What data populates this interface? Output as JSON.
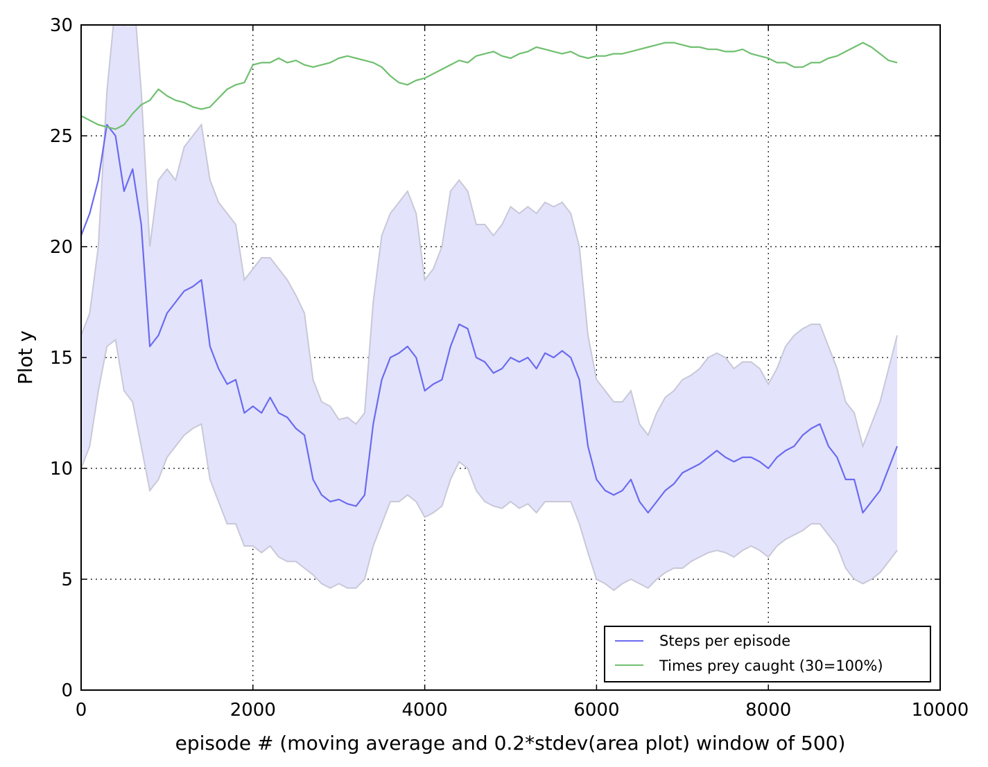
{
  "chart_data": {
    "type": "line",
    "title": "",
    "xlabel": "episode # (moving average and 0.2*stdev(area plot) window of 500)",
    "ylabel": "Plot y",
    "xlim": [
      0,
      10000
    ],
    "ylim": [
      0,
      30
    ],
    "x_ticks": [
      "0",
      "2000",
      "4000",
      "6000",
      "8000",
      "10000"
    ],
    "y_ticks": [
      "0",
      "5",
      "10",
      "15",
      "20",
      "25",
      "30"
    ],
    "grid": true,
    "legend_position": "lower-right",
    "colors": {
      "steps": "#6a6af0",
      "steps_band": "#e3e3fc",
      "band_edge": "#c8c8d8",
      "prey": "#6fbf6f"
    },
    "series": [
      {
        "name": "Steps per episode",
        "x": [
          0,
          100,
          200,
          300,
          400,
          500,
          600,
          700,
          800,
          900,
          1000,
          1100,
          1200,
          1300,
          1400,
          1500,
          1600,
          1700,
          1800,
          1900,
          2000,
          2100,
          2200,
          2300,
          2400,
          2500,
          2600,
          2700,
          2800,
          2900,
          3000,
          3100,
          3200,
          3300,
          3400,
          3500,
          3600,
          3700,
          3800,
          3900,
          4000,
          4100,
          4200,
          4300,
          4400,
          4500,
          4600,
          4700,
          4800,
          4900,
          5000,
          5100,
          5200,
          5300,
          5400,
          5500,
          5600,
          5700,
          5800,
          5900,
          6000,
          6100,
          6200,
          6300,
          6400,
          6500,
          6600,
          6700,
          6800,
          6900,
          7000,
          7100,
          7200,
          7300,
          7400,
          7500,
          7600,
          7700,
          7800,
          7900,
          8000,
          8100,
          8200,
          8300,
          8400,
          8500,
          8600,
          8700,
          8800,
          8900,
          9000,
          9100,
          9200,
          9300,
          9400,
          9500
        ],
        "y": [
          20.5,
          21.5,
          23,
          25.5,
          25,
          22.5,
          23.5,
          21,
          15.5,
          16,
          17,
          17.5,
          18,
          18.2,
          18.5,
          15.5,
          14.5,
          13.8,
          14,
          12.5,
          12.8,
          12.5,
          13.2,
          12.5,
          12.3,
          11.8,
          11.5,
          9.5,
          8.8,
          8.5,
          8.6,
          8.4,
          8.3,
          8.8,
          12.0,
          14.0,
          15.0,
          15.2,
          15.5,
          15.0,
          13.5,
          13.8,
          14.0,
          15.5,
          16.5,
          16.3,
          15.0,
          14.8,
          14.3,
          14.5,
          15.0,
          14.8,
          15.0,
          14.5,
          15.2,
          15.0,
          15.3,
          15.0,
          14.0,
          11.0,
          9.5,
          9.0,
          8.8,
          9.0,
          9.5,
          8.5,
          8.0,
          8.5,
          9.0,
          9.3,
          9.8,
          10.0,
          10.2,
          10.5,
          10.8,
          10.5,
          10.3,
          10.5,
          10.5,
          10.3,
          10.0,
          10.5,
          10.8,
          11.0,
          11.5,
          11.8,
          12.0,
          11.0,
          10.5,
          9.5,
          9.5,
          8.0,
          8.5,
          9.0,
          10.0,
          11.0
        ],
        "band_upper": [
          16.0,
          17.0,
          20.0,
          27.0,
          31.0,
          30.0,
          32.0,
          27.0,
          20.0,
          23.0,
          23.5,
          23.0,
          24.5,
          25.0,
          25.5,
          23.0,
          22.0,
          21.5,
          21.0,
          18.5,
          19.0,
          19.5,
          19.5,
          19.0,
          18.5,
          17.8,
          17.0,
          14.0,
          13.0,
          12.8,
          12.2,
          12.3,
          12.0,
          12.5,
          17.5,
          20.5,
          21.5,
          22.0,
          22.5,
          21.5,
          18.5,
          19.0,
          20.0,
          22.5,
          23.0,
          22.5,
          21.0,
          21.0,
          20.5,
          21.0,
          21.8,
          21.5,
          21.8,
          21.5,
          22.0,
          21.8,
          22.0,
          21.5,
          20.0,
          16.0,
          14.0,
          13.5,
          13.0,
          13.0,
          13.5,
          12.0,
          11.5,
          12.5,
          13.2,
          13.5,
          14.0,
          14.2,
          14.5,
          15.0,
          15.2,
          15.0,
          14.5,
          14.8,
          14.8,
          14.5,
          13.8,
          14.5,
          15.5,
          16.0,
          16.3,
          16.5,
          16.5,
          15.5,
          14.5,
          13.0,
          12.5,
          11.0,
          12.0,
          13.0,
          14.5,
          16.0
        ],
        "band_lower": [
          10.0,
          11.0,
          13.5,
          15.5,
          15.8,
          13.5,
          13.0,
          11.0,
          9.0,
          9.5,
          10.5,
          11.0,
          11.5,
          11.8,
          12.0,
          9.5,
          8.5,
          7.5,
          7.5,
          6.5,
          6.5,
          6.2,
          6.5,
          6.0,
          5.8,
          5.8,
          5.5,
          5.2,
          4.8,
          4.6,
          4.8,
          4.6,
          4.6,
          5.0,
          6.5,
          7.5,
          8.5,
          8.5,
          8.8,
          8.5,
          7.8,
          8.0,
          8.3,
          9.5,
          10.3,
          10.0,
          9.0,
          8.5,
          8.3,
          8.2,
          8.5,
          8.2,
          8.4,
          8.0,
          8.5,
          8.5,
          8.5,
          8.5,
          7.5,
          6.2,
          5.0,
          4.8,
          4.5,
          4.8,
          5.0,
          4.8,
          4.6,
          5.0,
          5.3,
          5.5,
          5.5,
          5.8,
          6.0,
          6.2,
          6.3,
          6.2,
          6.0,
          6.3,
          6.5,
          6.3,
          6.0,
          6.5,
          6.8,
          7.0,
          7.2,
          7.5,
          7.5,
          7.0,
          6.5,
          5.5,
          5.0,
          4.8,
          5.0,
          5.3,
          5.8,
          6.3
        ]
      },
      {
        "name": "Times prey caught (30=100%)",
        "x": [
          0,
          100,
          200,
          300,
          400,
          500,
          600,
          700,
          800,
          900,
          1000,
          1100,
          1200,
          1300,
          1400,
          1500,
          1600,
          1700,
          1800,
          1900,
          2000,
          2100,
          2200,
          2300,
          2400,
          2500,
          2600,
          2700,
          2800,
          2900,
          3000,
          3100,
          3200,
          3300,
          3400,
          3500,
          3600,
          3700,
          3800,
          3900,
          4000,
          4100,
          4200,
          4300,
          4400,
          4500,
          4600,
          4700,
          4800,
          4900,
          5000,
          5100,
          5200,
          5300,
          5400,
          5500,
          5600,
          5700,
          5800,
          5900,
          6000,
          6100,
          6200,
          6300,
          6400,
          6500,
          6600,
          6700,
          6800,
          6900,
          7000,
          7100,
          7200,
          7300,
          7400,
          7500,
          7600,
          7700,
          7800,
          7900,
          8000,
          8100,
          8200,
          8300,
          8400,
          8500,
          8600,
          8700,
          8800,
          8900,
          9000,
          9100,
          9200,
          9300,
          9400,
          9500
        ],
        "y": [
          25.9,
          25.7,
          25.5,
          25.4,
          25.3,
          25.5,
          26.0,
          26.4,
          26.6,
          27.1,
          26.8,
          26.6,
          26.5,
          26.3,
          26.2,
          26.3,
          26.7,
          27.1,
          27.3,
          27.4,
          28.2,
          28.3,
          28.3,
          28.5,
          28.3,
          28.4,
          28.2,
          28.1,
          28.2,
          28.3,
          28.5,
          28.6,
          28.5,
          28.4,
          28.3,
          28.1,
          27.7,
          27.4,
          27.3,
          27.5,
          27.6,
          27.8,
          28.0,
          28.2,
          28.4,
          28.3,
          28.6,
          28.7,
          28.8,
          28.6,
          28.5,
          28.7,
          28.8,
          29.0,
          28.9,
          28.8,
          28.7,
          28.8,
          28.6,
          28.5,
          28.6,
          28.6,
          28.7,
          28.7,
          28.8,
          28.9,
          29.0,
          29.1,
          29.2,
          29.2,
          29.1,
          29.0,
          29.0,
          28.9,
          28.9,
          28.8,
          28.8,
          28.9,
          28.7,
          28.6,
          28.5,
          28.3,
          28.3,
          28.1,
          28.1,
          28.3,
          28.3,
          28.5,
          28.6,
          28.8,
          29.0,
          29.2,
          29.0,
          28.7,
          28.4,
          28.3
        ]
      }
    ]
  }
}
